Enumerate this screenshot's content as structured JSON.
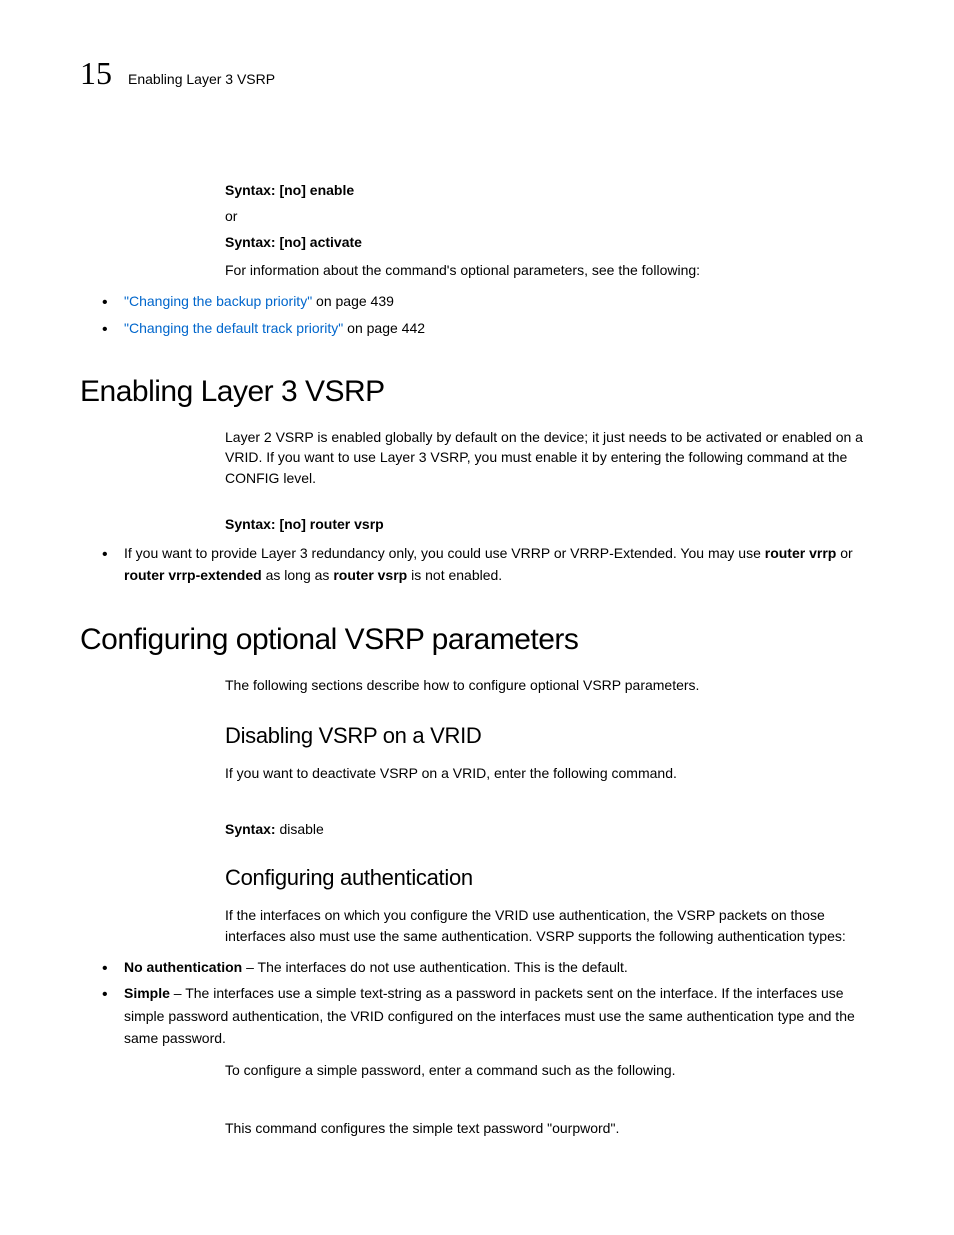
{
  "header": {
    "page_number": "15",
    "running_title": "Enabling Layer 3 VSRP"
  },
  "top_block": {
    "syntax1_label": "Syntax:",
    "syntax1_body": " [no] enable",
    "or": "or",
    "syntax2_label": "Syntax:",
    "syntax2_body": " [no] activate",
    "para1": "For information about the command's optional parameters, see the following:",
    "bullets": [
      {
        "link": "\"Changing the backup priority\"",
        "rest": " on page 439"
      },
      {
        "link": "\"Changing the default track priority\"",
        "rest": " on page 442"
      }
    ]
  },
  "section1": {
    "heading": "Enabling Layer 3 VSRP",
    "para1": "Layer 2 VSRP is enabled globally by default on the device; it just needs to be activated or enabled on a VRID. If you want to use Layer 3 VSRP, you must enable it by entering the following command at the CONFIG level.",
    "syntax_label": "Syntax:",
    "syntax_body": " [no] router vsrp",
    "bullet_pre": "If you want to provide Layer 3 redundancy only, you could use VRRP or VRRP-Extended. You may use ",
    "bullet_b1": "router vrrp",
    "bullet_mid1": " or ",
    "bullet_b2": "router vrrp-extended",
    "bullet_mid2": " as long as ",
    "bullet_b3": "router vsrp",
    "bullet_post": " is not enabled."
  },
  "section2": {
    "heading": "Configuring optional VSRP parameters",
    "para1": "The following sections describe how to configure optional VSRP parameters.",
    "sub1": {
      "heading": "Disabling VSRP on a VRID",
      "para1": "If you want to deactivate VSRP on a VRID, enter the following command.",
      "syntax_label": "Syntax:",
      "syntax_body": " disable"
    },
    "sub2": {
      "heading": "Configuring authentication",
      "para1": "If the interfaces on which you configure the VRID use authentication, the VSRP packets on those interfaces also must use the same authentication. VSRP supports the following authentication types:",
      "bullet1_b": "No authentication",
      "bullet1_rest": " – The interfaces do not use authentication. This is the default.",
      "bullet2_b": "Simple",
      "bullet2_rest": " – The interfaces use a simple text-string as a password in packets sent on the interface.  If the interfaces use simple password authentication, the VRID configured on the interfaces must use the same authentication type and the same password.",
      "para2": "To configure a simple password, enter a command such as the following.",
      "para3": "This command configures the simple text password \"ourpword\"."
    }
  }
}
